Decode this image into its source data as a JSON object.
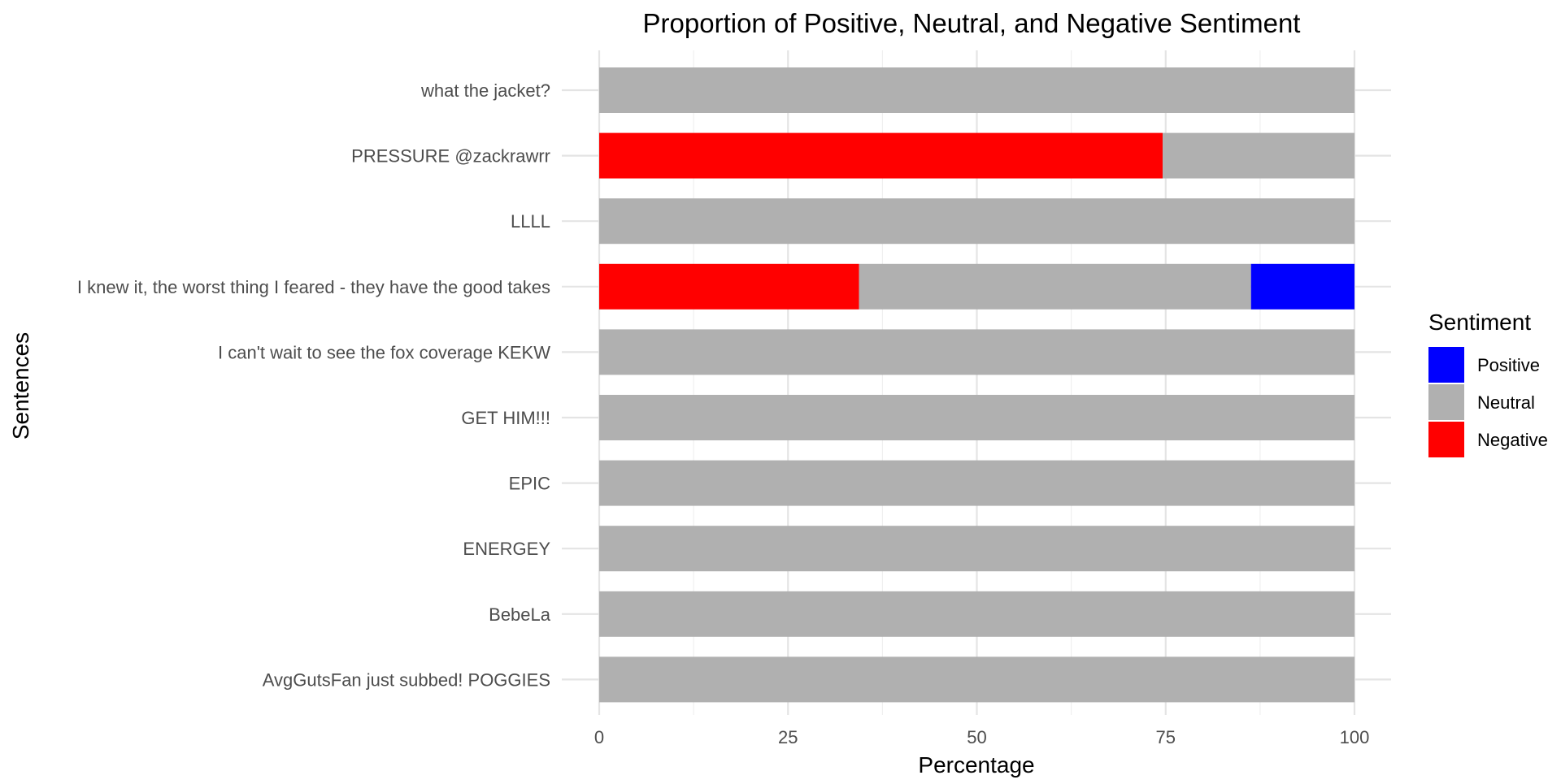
{
  "chart_data": {
    "type": "bar",
    "orientation": "horizontal",
    "stacked": true,
    "title": "Proportion of Positive, Neutral, and Negative Sentiment",
    "xlabel": "Percentage",
    "ylabel": "Sentences",
    "xlim": [
      0,
      100
    ],
    "x_ticks": [
      "0",
      "25",
      "50",
      "75",
      "100"
    ],
    "grid": true,
    "legend_position": "right",
    "legend_title": "Sentiment",
    "categories": [
      "what the jacket?",
      "PRESSURE @zackrawrr",
      "LLLL",
      "I knew it, the worst thing I feared - they have the good takes",
      "I can't wait to see the fox coverage KEKW",
      "GET HIM!!!",
      "EPIC",
      "ENERGEY",
      "BebeLa",
      "AvgGutsFan just subbed! POGGIES"
    ],
    "series": [
      {
        "name": "Negative",
        "color": "#ff0000",
        "values": [
          0,
          74.6,
          0,
          34.4,
          0,
          0,
          0,
          0,
          0,
          0
        ]
      },
      {
        "name": "Neutral",
        "color": "#b0b0b0",
        "values": [
          100,
          25.4,
          100,
          51.9,
          100,
          100,
          100,
          100,
          100,
          100
        ]
      },
      {
        "name": "Positive",
        "color": "#0000ff",
        "values": [
          0,
          0,
          0,
          13.7,
          0,
          0,
          0,
          0,
          0,
          0
        ]
      }
    ],
    "legend_order": [
      "Positive",
      "Neutral",
      "Negative"
    ]
  }
}
